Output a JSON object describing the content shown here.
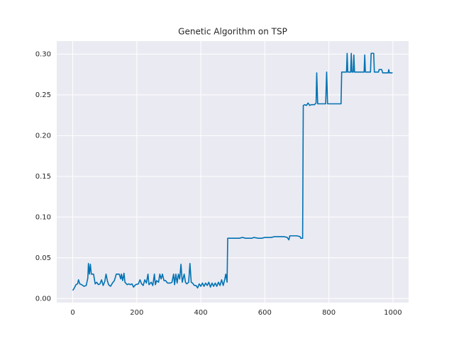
{
  "chart_data": {
    "type": "line",
    "title": "Genetic Algorithm on TSP",
    "color": "#0072b2",
    "grid": true,
    "xlim": [
      -50,
      1049
    ],
    "ylim": [
      -0.005,
      0.316
    ],
    "xticks": [
      0,
      200,
      400,
      600,
      800,
      1000
    ],
    "yticks": [
      {
        "value": 0,
        "label": "0.00"
      },
      {
        "value": 0.05,
        "label": "0.05"
      },
      {
        "value": 0.1,
        "label": "0.10"
      },
      {
        "value": 0.15,
        "label": "0.15"
      },
      {
        "value": 0.2,
        "label": "0.20"
      },
      {
        "value": 0.25,
        "label": "0.25"
      },
      {
        "value": 0.3,
        "label": "0.30"
      }
    ],
    "x": [
      0,
      5,
      10,
      15,
      18,
      22,
      28,
      35,
      42,
      47,
      49,
      52,
      55,
      58,
      65,
      70,
      75,
      80,
      85,
      90,
      95,
      100,
      104,
      108,
      112,
      118,
      124,
      130,
      136,
      145,
      150,
      152,
      156,
      160,
      163,
      170,
      175,
      180,
      185,
      190,
      196,
      205,
      210,
      215,
      220,
      225,
      230,
      235,
      238,
      245,
      250,
      255,
      258,
      262,
      268,
      272,
      276,
      280,
      285,
      290,
      296,
      300,
      305,
      310,
      315,
      318,
      322,
      326,
      330,
      334,
      338,
      342,
      348,
      352,
      356,
      362,
      366,
      370,
      374,
      380,
      385,
      390,
      395,
      400,
      405,
      410,
      415,
      420,
      425,
      430,
      435,
      440,
      445,
      450,
      455,
      460,
      465,
      470,
      475,
      478,
      482,
      484,
      500,
      520,
      530,
      540,
      560,
      565,
      580,
      590,
      600,
      620,
      630,
      660,
      670,
      675,
      678,
      700,
      710,
      712,
      718,
      720,
      725,
      730,
      735,
      740,
      745,
      755,
      760,
      762,
      765,
      790,
      793,
      796,
      838,
      840,
      855,
      857,
      859,
      868,
      870,
      872,
      876,
      878,
      880,
      910,
      912,
      914,
      930,
      932,
      940,
      942,
      955,
      957,
      965,
      968,
      985,
      987,
      989,
      999
    ],
    "values": [
      0.01,
      0.013,
      0.017,
      0.018,
      0.023,
      0.018,
      0.017,
      0.015,
      0.016,
      0.025,
      0.043,
      0.03,
      0.042,
      0.03,
      0.03,
      0.018,
      0.02,
      0.017,
      0.018,
      0.023,
      0.016,
      0.021,
      0.03,
      0.022,
      0.017,
      0.015,
      0.019,
      0.022,
      0.03,
      0.03,
      0.024,
      0.03,
      0.022,
      0.031,
      0.02,
      0.017,
      0.018,
      0.017,
      0.018,
      0.014,
      0.017,
      0.018,
      0.023,
      0.018,
      0.016,
      0.023,
      0.019,
      0.03,
      0.017,
      0.02,
      0.016,
      0.03,
      0.017,
      0.022,
      0.02,
      0.03,
      0.024,
      0.03,
      0.022,
      0.022,
      0.019,
      0.019,
      0.019,
      0.02,
      0.03,
      0.017,
      0.03,
      0.019,
      0.03,
      0.024,
      0.042,
      0.02,
      0.03,
      0.02,
      0.018,
      0.02,
      0.043,
      0.02,
      0.019,
      0.016,
      0.016,
      0.013,
      0.018,
      0.015,
      0.019,
      0.015,
      0.019,
      0.016,
      0.02,
      0.014,
      0.019,
      0.015,
      0.019,
      0.015,
      0.02,
      0.016,
      0.023,
      0.016,
      0.024,
      0.03,
      0.02,
      0.074,
      0.074,
      0.074,
      0.075,
      0.074,
      0.074,
      0.075,
      0.074,
      0.074,
      0.075,
      0.075,
      0.076,
      0.076,
      0.075,
      0.072,
      0.077,
      0.077,
      0.076,
      0.074,
      0.074,
      0.237,
      0.238,
      0.237,
      0.24,
      0.237,
      0.238,
      0.238,
      0.24,
      0.277,
      0.239,
      0.239,
      0.278,
      0.239,
      0.239,
      0.278,
      0.278,
      0.301,
      0.278,
      0.278,
      0.301,
      0.278,
      0.278,
      0.299,
      0.278,
      0.278,
      0.299,
      0.278,
      0.278,
      0.301,
      0.301,
      0.278,
      0.278,
      0.281,
      0.281,
      0.277,
      0.277,
      0.281,
      0.277,
      0.277
    ]
  }
}
